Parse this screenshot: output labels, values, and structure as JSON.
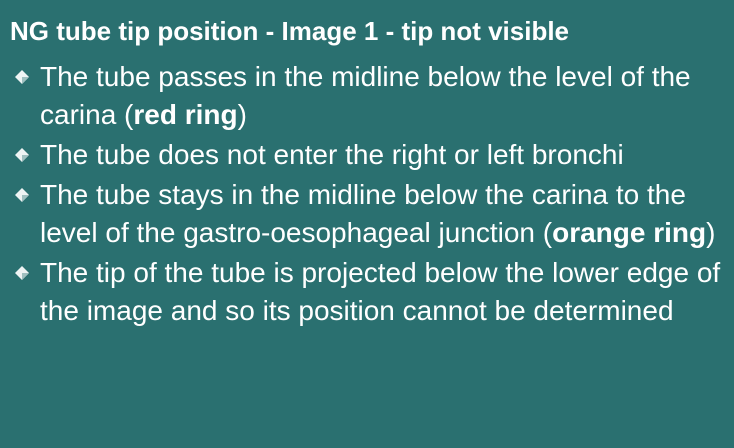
{
  "title": "NG tube tip position - Image 1 - tip not visible",
  "bullets": [
    {
      "prefix": "The tube passes in the midline below the level of the carina (",
      "bold": "red ring",
      "suffix": ")"
    },
    {
      "text": "The tube does not enter the right or left bronchi"
    },
    {
      "prefix": "The tube stays in the midline below the carina to the level of the gastro-oesophageal junction (",
      "bold": "orange ring",
      "suffix": ")"
    },
    {
      "text": "The tip of the tube is projected below the lower edge of the image and so its position cannot be determined"
    }
  ],
  "colors": {
    "background": "#2a7070",
    "text": "#ffffff",
    "bullet_light": "#eef4f4",
    "bullet_shade": "#9fc0c0"
  },
  "icons": {
    "bullet": "diamond-bullet-icon"
  }
}
